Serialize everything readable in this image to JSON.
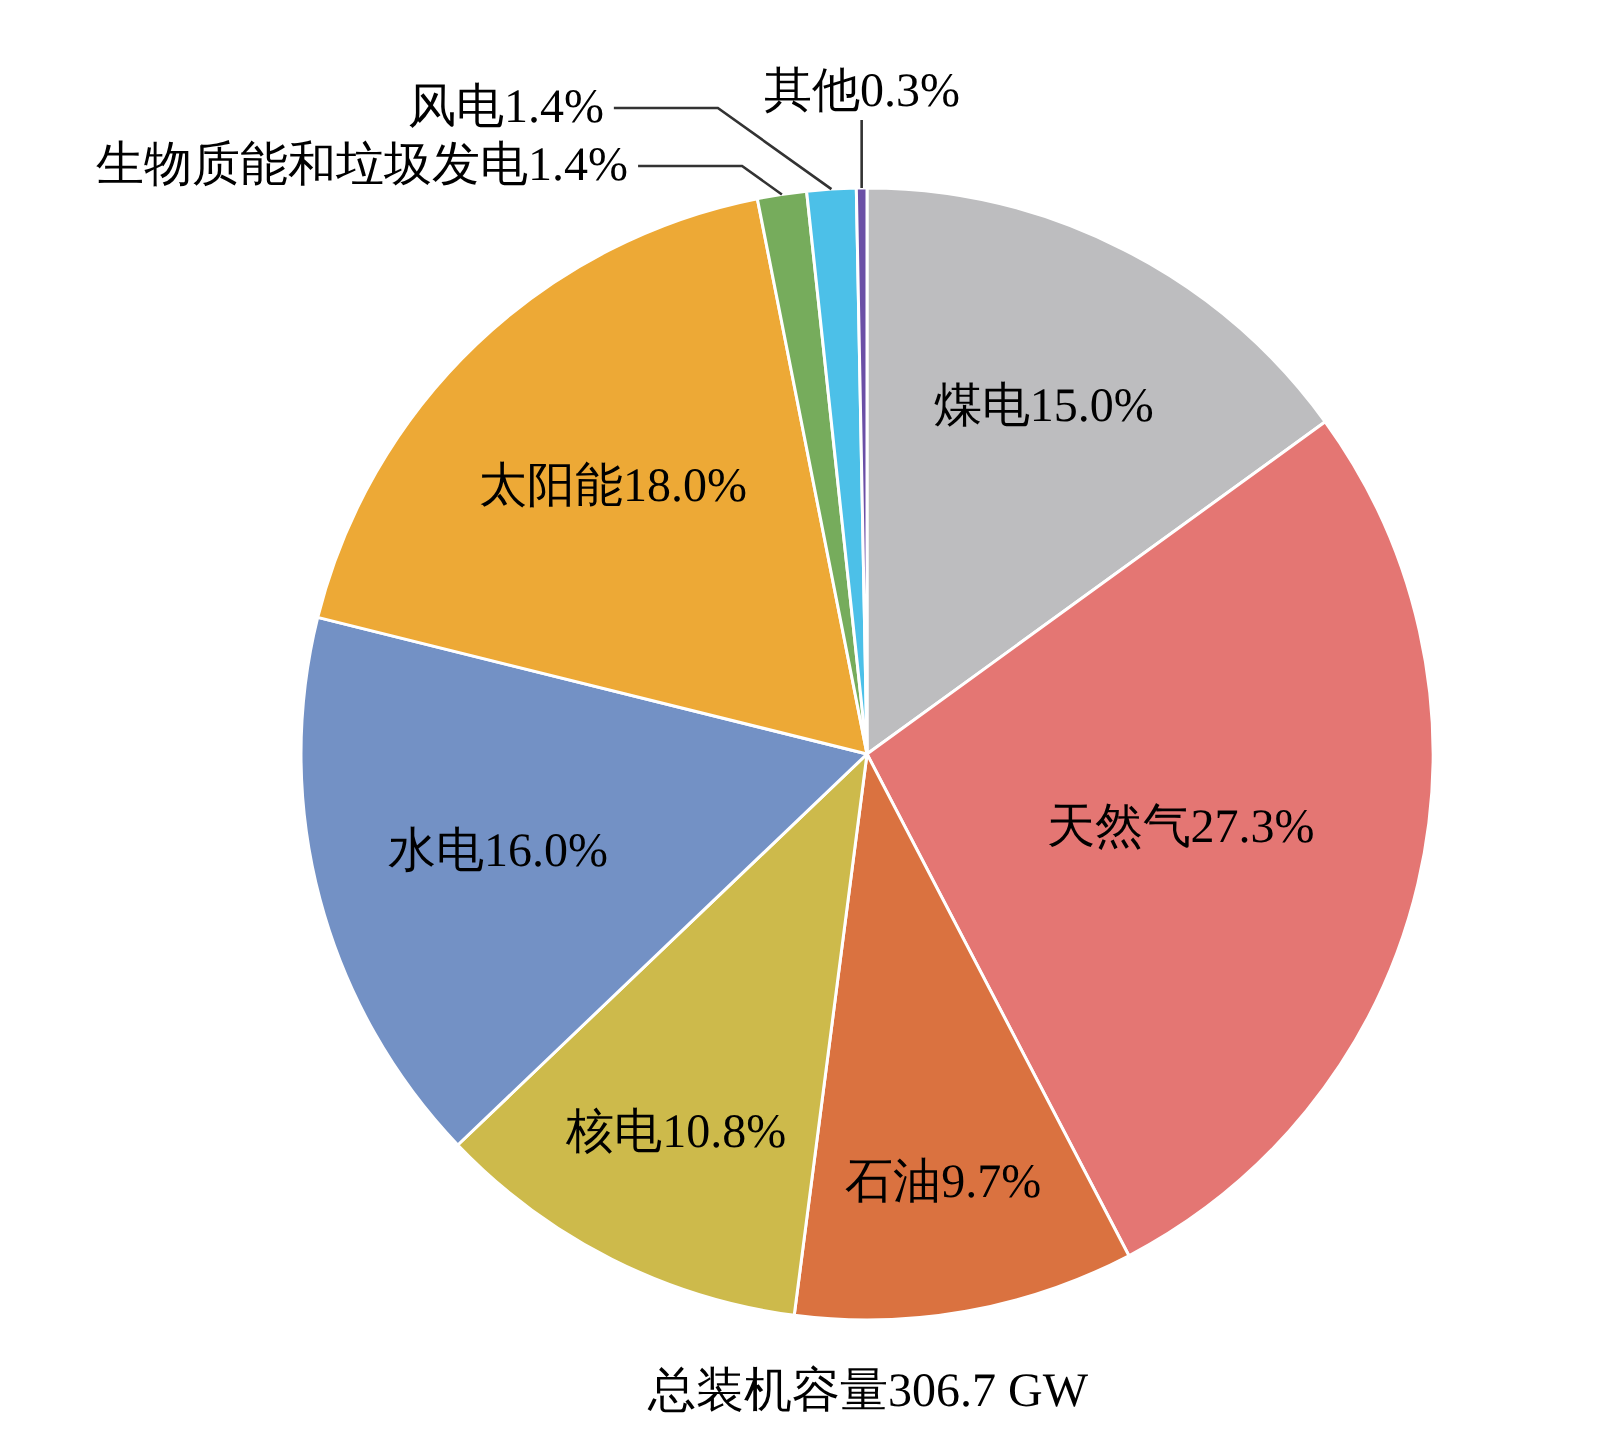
{
  "chart_data": {
    "type": "pie",
    "categories": [
      "煤电",
      "天然气",
      "石油",
      "核电",
      "水电",
      "太阳能",
      "生物质能和垃圾发电",
      "风电",
      "其他"
    ],
    "values": [
      15.0,
      27.3,
      9.7,
      10.8,
      16.0,
      18.0,
      1.4,
      1.4,
      0.3
    ],
    "value_labels": [
      "15.0%",
      "27.3%",
      "9.7%",
      "10.8%",
      "16.0%",
      "18.0%",
      "1.4%",
      "1.4%",
      "0.3%"
    ],
    "colors": [
      "#bdbdbf",
      "#e47673",
      "#da7240",
      "#cdba4b",
      "#7391c5",
      "#eda936",
      "#76ac5c",
      "#4cc0e8",
      "#6b4fa6"
    ],
    "annotations": [
      "总装机容量306.7 GW"
    ],
    "legend": false
  }
}
